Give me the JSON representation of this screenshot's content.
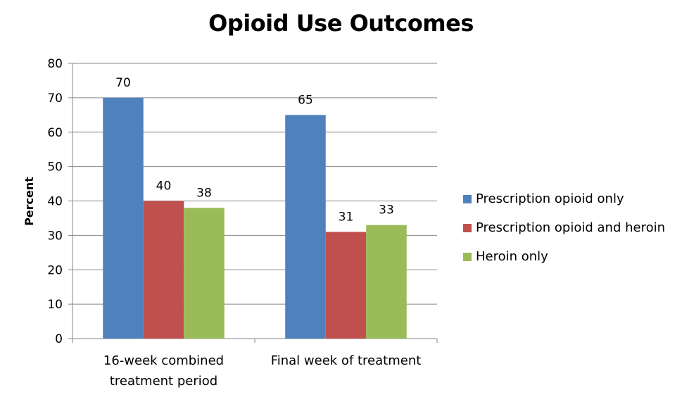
{
  "chart_data": {
    "type": "bar",
    "title": "Opioid Use Outcomes",
    "ylabel": "Percent",
    "xlabel": "",
    "ylim": [
      0,
      80
    ],
    "yticks": [
      "0",
      "10",
      "20",
      "30",
      "40",
      "50",
      "60",
      "70",
      "80"
    ],
    "grid": true,
    "legend_position": "right",
    "categories": [
      "16-week combined treatment period",
      "Final week of treatment"
    ],
    "category_lines": [
      [
        "16-week combined",
        "treatment period"
      ],
      [
        "Final week of treatment"
      ]
    ],
    "series": [
      {
        "name": "Prescription opioid only",
        "color": "#4F81BD",
        "values": [
          70,
          65
        ]
      },
      {
        "name": "Prescription opioid and heroin",
        "color": "#C0504D",
        "values": [
          40,
          31
        ]
      },
      {
        "name": "Heroin only",
        "color": "#9BBB59",
        "values": [
          38,
          33
        ]
      }
    ]
  }
}
